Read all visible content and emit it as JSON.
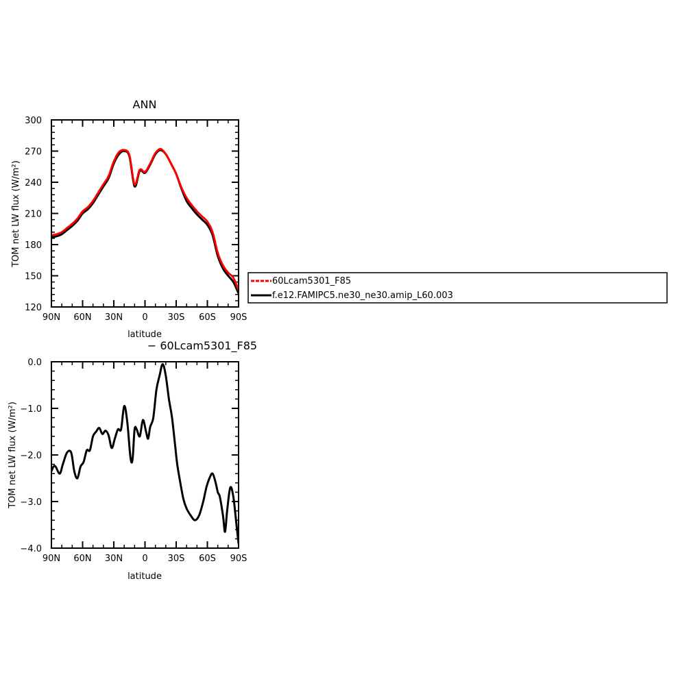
{
  "chart_data": [
    {
      "type": "line",
      "title": "ANN",
      "xlabel": "latitude",
      "ylabel": "TOM net LW flux (W/m²)",
      "xlim": [
        90,
        -90
      ],
      "ylim": [
        120,
        300
      ],
      "x_tick_values": [
        90,
        60,
        30,
        0,
        -30,
        -60,
        -90
      ],
      "x_tick_labels": [
        "90N",
        "60N",
        "30N",
        "0",
        "30S",
        "60S",
        "90S"
      ],
      "y_tick_values": [
        120,
        150,
        180,
        210,
        240,
        270,
        300
      ],
      "y_tick_labels": [
        "120",
        "150",
        "180",
        "210",
        "240",
        "270",
        "300"
      ],
      "grid": false,
      "legend_position": "right",
      "series": [
        {
          "name": "60Lcam5301_F85",
          "color": "#ff0000",
          "style": "dashed",
          "x": [
            90,
            85,
            80,
            75,
            70,
            65,
            60,
            55,
            50,
            45,
            40,
            35,
            30,
            25,
            20,
            15,
            10,
            5,
            0,
            -5,
            -10,
            -15,
            -20,
            -25,
            -30,
            -35,
            -40,
            -45,
            -50,
            -55,
            -60,
            -65,
            -70,
            -75,
            -80,
            -85,
            -90
          ],
          "y": [
            189,
            190,
            192,
            196,
            200,
            205,
            212,
            216,
            222,
            230,
            238,
            246,
            260,
            269,
            271,
            266,
            238,
            252,
            250,
            258,
            268,
            272,
            267,
            258,
            248,
            235,
            225,
            218,
            212,
            207,
            202,
            192,
            172,
            160,
            153,
            148,
            136
          ]
        },
        {
          "name": "f.e12.FAMIPC5.ne30_ne30.amip_L60.003",
          "color": "#000000",
          "style": "solid",
          "x": [
            90,
            85,
            80,
            75,
            70,
            65,
            60,
            55,
            50,
            45,
            40,
            35,
            30,
            25,
            20,
            15,
            10,
            5,
            0,
            -5,
            -10,
            -15,
            -20,
            -25,
            -30,
            -35,
            -40,
            -45,
            -50,
            -55,
            -60,
            -65,
            -70,
            -75,
            -80,
            -85,
            -90
          ],
          "y": [
            187,
            188,
            190,
            194,
            198,
            203,
            210,
            214,
            220,
            228,
            236,
            244,
            258,
            267,
            270,
            265,
            236,
            251,
            249,
            257,
            267,
            271,
            267,
            258,
            248,
            234,
            222,
            215,
            209,
            204,
            199,
            189,
            169,
            157,
            150,
            144,
            133
          ]
        }
      ]
    },
    {
      "type": "line",
      "title": "− 60Lcam5301_F85",
      "xlabel": "latitude",
      "ylabel": "TOM net LW flux (W/m²)",
      "xlim": [
        90,
        -90
      ],
      "ylim": [
        -4.0,
        0.0
      ],
      "x_tick_values": [
        90,
        60,
        30,
        0,
        -30,
        -60,
        -90
      ],
      "x_tick_labels": [
        "90N",
        "60N",
        "30N",
        "0",
        "30S",
        "60S",
        "90S"
      ],
      "y_tick_values": [
        -4.0,
        -3.0,
        -2.0,
        -1.0,
        0.0
      ],
      "y_tick_labels": [
        "−4.0",
        "−3.0",
        "−2.0",
        "−1.0",
        "0.0"
      ],
      "grid": false,
      "series": [
        {
          "color": "#000000",
          "style": "solid",
          "x": [
            90,
            88,
            86,
            82,
            79,
            75,
            71,
            68,
            65,
            62,
            59,
            56,
            53,
            50,
            47,
            44,
            41,
            38,
            35,
            32,
            29,
            26,
            23,
            20,
            17,
            14,
            12,
            10,
            8,
            5,
            2,
            -1,
            -3,
            -5,
            -8,
            -11,
            -14,
            -17,
            -20,
            -23,
            -26,
            -29,
            -31,
            -34,
            -37,
            -40,
            -44,
            -48,
            -52,
            -56,
            -59,
            -62,
            -65,
            -68,
            -70,
            -72,
            -75,
            -77,
            -79,
            -82,
            -85,
            -88,
            -90
          ],
          "y": [
            -2.35,
            -2.25,
            -2.25,
            -2.4,
            -2.2,
            -1.95,
            -1.95,
            -2.35,
            -2.5,
            -2.25,
            -2.15,
            -1.9,
            -1.9,
            -1.6,
            -1.5,
            -1.42,
            -1.55,
            -1.48,
            -1.58,
            -1.85,
            -1.65,
            -1.45,
            -1.45,
            -0.95,
            -1.3,
            -2.05,
            -2.1,
            -1.45,
            -1.45,
            -1.6,
            -1.25,
            -1.5,
            -1.65,
            -1.4,
            -1.2,
            -0.6,
            -0.3,
            -0.05,
            -0.3,
            -0.8,
            -1.2,
            -1.8,
            -2.2,
            -2.6,
            -2.95,
            -3.15,
            -3.3,
            -3.4,
            -3.3,
            -3.0,
            -2.7,
            -2.5,
            -2.4,
            -2.6,
            -2.8,
            -2.9,
            -3.3,
            -3.65,
            -3.2,
            -2.7,
            -2.9,
            -3.5,
            -3.9
          ]
        }
      ]
    }
  ]
}
